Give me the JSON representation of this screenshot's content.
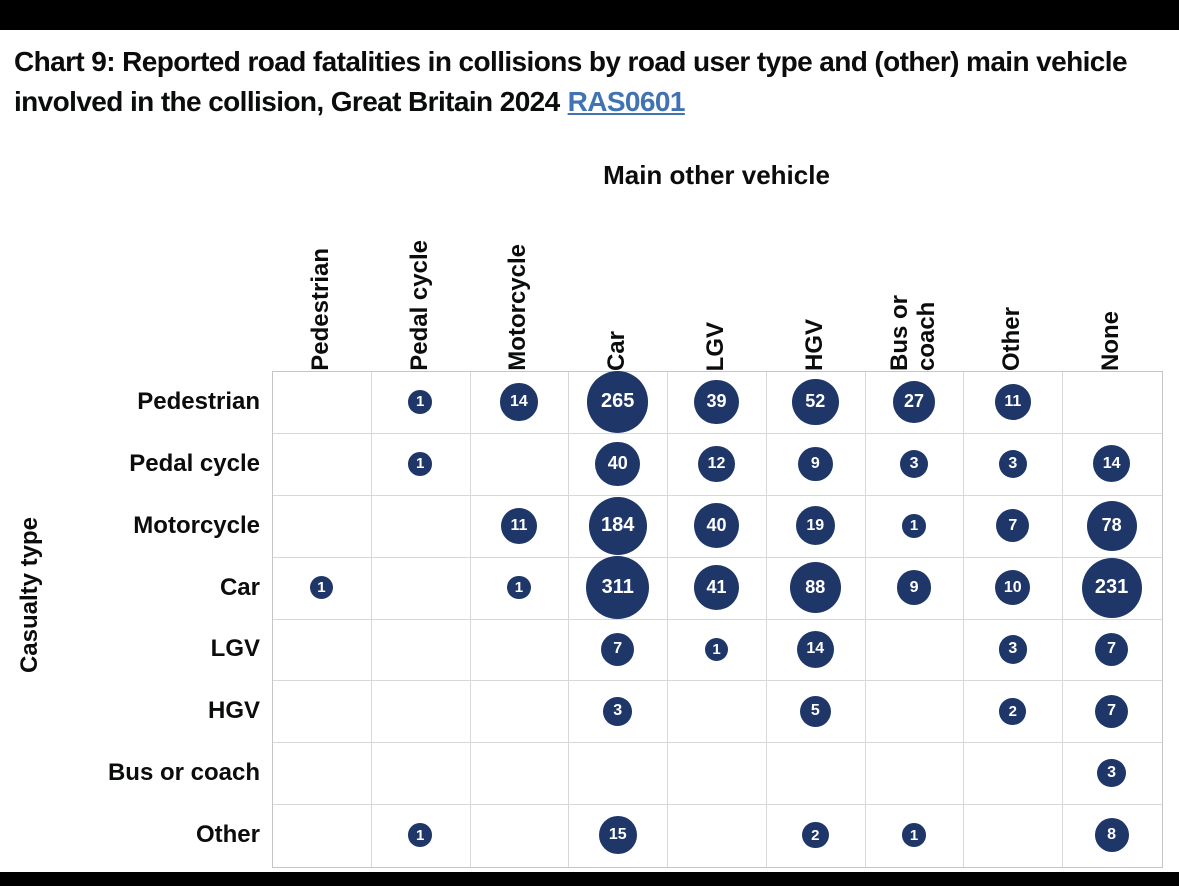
{
  "title": {
    "text": "Chart 9: Reported road fatalities in collisions by road user type and (other) main vehicle involved in the collision, Great Britain 2024",
    "link_label": "RAS0601",
    "link_color": "#4173b4"
  },
  "chart_data": {
    "type": "heatmap",
    "subtype": "bubble-matrix",
    "x_title": "Main other vehicle",
    "y_title": "Casualty type",
    "columns": [
      "Pedestrian",
      "Pedal cycle",
      "Motorcycle",
      "Car",
      "LGV",
      "HGV",
      "Bus or coach",
      "Other",
      "None"
    ],
    "columns_display": [
      "Pedestrian",
      "Pedal cycle",
      "Motorcycle",
      "Car",
      "LGV",
      "HGV",
      "Bus or\ncoach",
      "Other",
      "None"
    ],
    "rows": [
      "Pedestrian",
      "Pedal cycle",
      "Motorcycle",
      "Car",
      "LGV",
      "HGV",
      "Bus or coach",
      "Other"
    ],
    "values": [
      [
        null,
        1,
        14,
        265,
        39,
        52,
        27,
        11,
        null
      ],
      [
        null,
        1,
        null,
        40,
        12,
        9,
        3,
        3,
        14
      ],
      [
        null,
        null,
        11,
        184,
        40,
        19,
        1,
        7,
        78
      ],
      [
        1,
        null,
        1,
        311,
        41,
        88,
        9,
        10,
        231
      ],
      [
        null,
        null,
        null,
        7,
        1,
        14,
        null,
        3,
        7
      ],
      [
        null,
        null,
        null,
        3,
        null,
        5,
        null,
        2,
        7
      ],
      [
        null,
        null,
        null,
        null,
        null,
        null,
        null,
        null,
        3
      ],
      [
        null,
        1,
        null,
        15,
        null,
        2,
        1,
        null,
        8
      ]
    ],
    "bubble_color": "#1e3668",
    "value_text_color": "#ffffff",
    "grid_line_color": "#d8d8d8",
    "legend": "none",
    "grid": "on"
  }
}
